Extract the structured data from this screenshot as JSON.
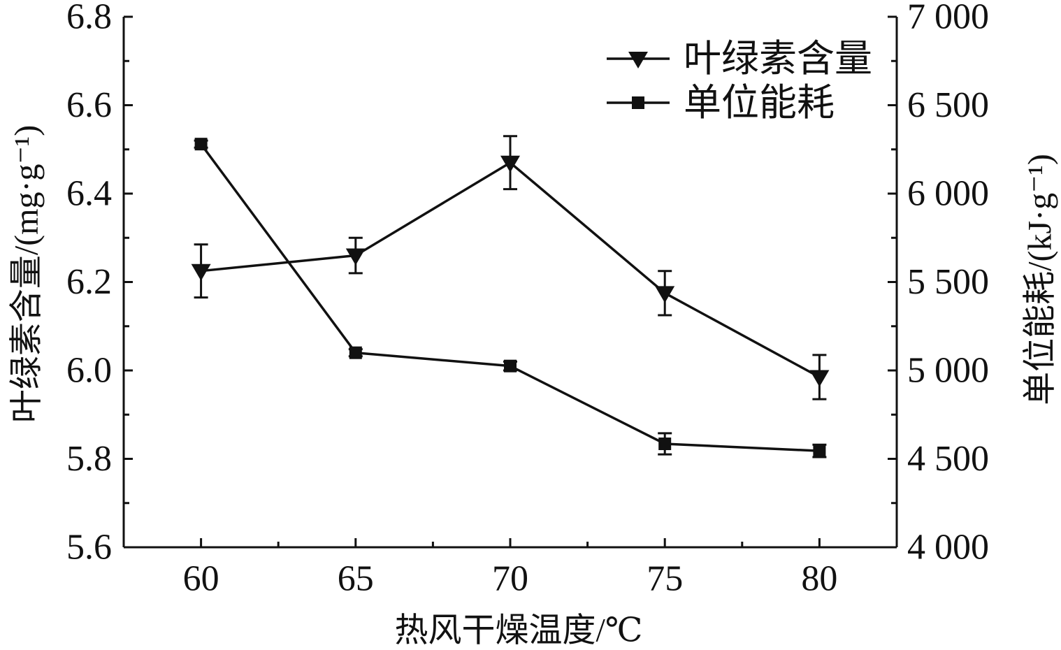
{
  "chart_data": {
    "type": "line",
    "x": [
      60,
      65,
      70,
      75,
      80
    ],
    "xlabel": "热风干燥温度/℃",
    "xlim": [
      57.5,
      82.5
    ],
    "xticks": [
      60,
      65,
      70,
      75,
      80
    ],
    "xtick_labels": [
      "60",
      "65",
      "70",
      "75",
      "80"
    ],
    "y_left": {
      "label": "叶绿素含量/(mg·g⁻¹)",
      "lim": [
        5.6,
        6.8
      ],
      "ticks": [
        5.6,
        5.8,
        6.0,
        6.2,
        6.4,
        6.6,
        6.8
      ],
      "tick_labels": [
        "5.6",
        "5.8",
        "6.0",
        "6.2",
        "6.4",
        "6.6",
        "6.8"
      ]
    },
    "y_right": {
      "label": "单位能耗/(kJ·g⁻¹)",
      "lim": [
        4000,
        7000
      ],
      "ticks": [
        4000,
        4500,
        5000,
        5500,
        6000,
        6500,
        7000
      ],
      "tick_labels": [
        "4 000",
        "4 500",
        "5 000",
        "5 500",
        "6 000",
        "6 500",
        "7 000"
      ]
    },
    "series": [
      {
        "name": "叶绿素含量",
        "axis": "left",
        "marker": "triangle-down",
        "color": "#111111",
        "values": [
          6.225,
          6.26,
          6.47,
          6.175,
          5.985
        ],
        "errors": [
          0.06,
          0.04,
          0.06,
          0.05,
          0.05
        ]
      },
      {
        "name": "单位能耗",
        "axis": "right",
        "marker": "square",
        "color": "#111111",
        "values": [
          6280,
          5100,
          5025,
          4585,
          4545
        ],
        "errors": [
          20,
          20,
          25,
          60,
          35
        ]
      }
    ],
    "legend": "top-right",
    "grid": false
  }
}
